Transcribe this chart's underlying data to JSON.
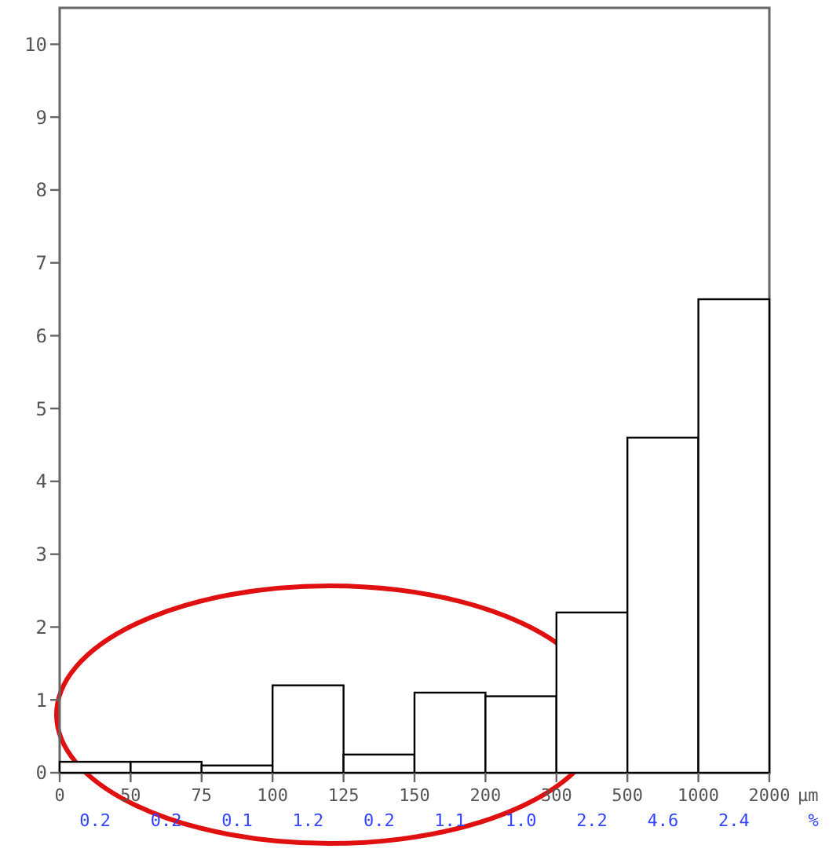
{
  "chart_data": {
    "type": "bar",
    "xlabel": "µm",
    "categories": [
      null,
      null,
      null,
      null,
      null,
      null,
      null,
      null,
      null,
      null
    ],
    "values": [
      0.15,
      0.15,
      0.1,
      1.2,
      0.25,
      1.1,
      1.05,
      2.2,
      4.6,
      6.5
    ],
    "annotations": [
      "0",
      "50",
      "75",
      "100",
      "125",
      "150",
      "200",
      "300",
      "500",
      "1000",
      "2000",
      "0.2",
      "0.2",
      "0.1",
      "1.2",
      "0.2",
      "1.1",
      "1.0",
      "2.2",
      "4.6",
      "2.4",
      "%"
    ],
    "color": "#ffffff",
    "ylim": [
      0,
      10.5
    ],
    "yticks": [
      0,
      1,
      2,
      3,
      4,
      5,
      6,
      7,
      8,
      9,
      10
    ],
    "grid": false
  }
}
